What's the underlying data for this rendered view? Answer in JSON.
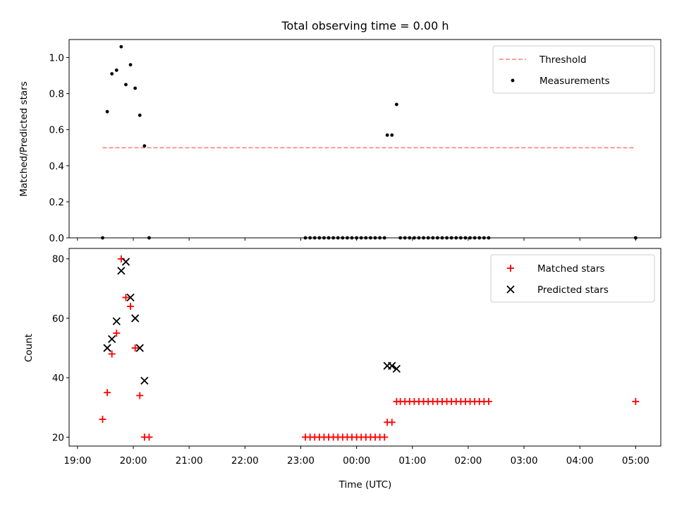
{
  "title": "Total observing time = 0.00 h",
  "chart_data": [
    {
      "type": "scatter",
      "id": "ratio",
      "ylabel": "Matched/Predicted stars",
      "xlabel": "",
      "ylim": [
        0,
        1.1
      ],
      "yticks": [
        0.0,
        0.2,
        0.4,
        0.6,
        0.8,
        1.0
      ],
      "ytick_labels": [
        "0.0",
        "0.2",
        "0.4",
        "0.6",
        "0.8",
        "1.0"
      ],
      "xlim_hours": [
        18.85,
        29.45
      ],
      "xticks_hours": [
        19,
        20,
        21,
        22,
        23,
        24,
        25,
        26,
        27,
        28,
        29
      ],
      "show_xtick_labels": false,
      "legend": {
        "placement": "top-right",
        "entries": [
          {
            "label": "Threshold",
            "marker": "dashed-line",
            "color": "#ff7f7f"
          },
          {
            "label": "Measurements",
            "marker": "dot",
            "color": "#000000"
          }
        ]
      },
      "threshold": {
        "name": "Threshold",
        "value": 0.5,
        "x": [
          "19:27",
          "04:58"
        ],
        "color": "#ff7f7f",
        "style": "dashed"
      },
      "series": [
        {
          "name": "Measurements",
          "color": "#000000",
          "marker": "dot",
          "points": [
            [
              "19:27",
              0.0
            ],
            [
              "19:32",
              0.7
            ],
            [
              "19:37",
              0.91
            ],
            [
              "19:42",
              0.93
            ],
            [
              "19:47",
              1.06
            ],
            [
              "19:52",
              0.85
            ],
            [
              "19:57",
              0.96
            ],
            [
              "20:02",
              0.83
            ],
            [
              "20:07",
              0.68
            ],
            [
              "20:12",
              0.51
            ],
            [
              "20:17",
              0.0
            ],
            [
              "23:05",
              0.0
            ],
            [
              "23:10",
              0.0
            ],
            [
              "23:15",
              0.0
            ],
            [
              "23:20",
              0.0
            ],
            [
              "23:25",
              0.0
            ],
            [
              "23:30",
              0.0
            ],
            [
              "23:35",
              0.0
            ],
            [
              "23:40",
              0.0
            ],
            [
              "23:45",
              0.0
            ],
            [
              "23:50",
              0.0
            ],
            [
              "23:55",
              0.0
            ],
            [
              "00:00",
              0.0
            ],
            [
              "00:05",
              0.0
            ],
            [
              "00:10",
              0.0
            ],
            [
              "00:15",
              0.0
            ],
            [
              "00:20",
              0.0
            ],
            [
              "00:25",
              0.0
            ],
            [
              "00:30",
              0.0
            ],
            [
              "00:33",
              0.57
            ],
            [
              "00:38",
              0.57
            ],
            [
              "00:43",
              0.74
            ],
            [
              "00:47",
              0.0
            ],
            [
              "00:52",
              0.0
            ],
            [
              "00:57",
              0.0
            ],
            [
              "01:02",
              0.0
            ],
            [
              "01:07",
              0.0
            ],
            [
              "01:12",
              0.0
            ],
            [
              "01:17",
              0.0
            ],
            [
              "01:22",
              0.0
            ],
            [
              "01:27",
              0.0
            ],
            [
              "01:32",
              0.0
            ],
            [
              "01:37",
              0.0
            ],
            [
              "01:42",
              0.0
            ],
            [
              "01:47",
              0.0
            ],
            [
              "01:52",
              0.0
            ],
            [
              "01:57",
              0.0
            ],
            [
              "02:02",
              0.0
            ],
            [
              "02:07",
              0.0
            ],
            [
              "02:12",
              0.0
            ],
            [
              "02:17",
              0.0
            ],
            [
              "02:22",
              0.0
            ],
            [
              "05:00",
              0.0
            ]
          ]
        }
      ]
    },
    {
      "type": "scatter",
      "id": "counts",
      "ylabel": "Count",
      "xlabel": "Time (UTC)",
      "ylim": [
        17,
        83.5
      ],
      "yticks": [
        20,
        40,
        60,
        80
      ],
      "ytick_labels": [
        "20",
        "40",
        "60",
        "80"
      ],
      "xlim_hours": [
        18.85,
        29.45
      ],
      "xticks_hours": [
        19,
        20,
        21,
        22,
        23,
        24,
        25,
        26,
        27,
        28,
        29
      ],
      "xtick_labels": [
        "19:00",
        "20:00",
        "21:00",
        "22:00",
        "23:00",
        "00:00",
        "01:00",
        "02:00",
        "03:00",
        "04:00",
        "05:00"
      ],
      "show_xtick_labels": true,
      "legend": {
        "placement": "top-right",
        "entries": [
          {
            "label": "Matched stars",
            "marker": "plus",
            "color": "#ff0000"
          },
          {
            "label": "Predicted stars",
            "marker": "x",
            "color": "#000000"
          }
        ]
      },
      "series": [
        {
          "name": "Matched stars",
          "color": "#ff0000",
          "marker": "plus",
          "points": [
            [
              "19:27",
              26
            ],
            [
              "19:32",
              35
            ],
            [
              "19:37",
              48
            ],
            [
              "19:42",
              55
            ],
            [
              "19:47",
              80
            ],
            [
              "19:52",
              67
            ],
            [
              "19:57",
              64
            ],
            [
              "20:02",
              50
            ],
            [
              "20:07",
              34
            ],
            [
              "20:12",
              20
            ],
            [
              "20:17",
              20
            ],
            [
              "23:05",
              20
            ],
            [
              "23:10",
              20
            ],
            [
              "23:15",
              20
            ],
            [
              "23:20",
              20
            ],
            [
              "23:25",
              20
            ],
            [
              "23:30",
              20
            ],
            [
              "23:35",
              20
            ],
            [
              "23:40",
              20
            ],
            [
              "23:45",
              20
            ],
            [
              "23:50",
              20
            ],
            [
              "23:55",
              20
            ],
            [
              "00:00",
              20
            ],
            [
              "00:05",
              20
            ],
            [
              "00:10",
              20
            ],
            [
              "00:15",
              20
            ],
            [
              "00:20",
              20
            ],
            [
              "00:25",
              20
            ],
            [
              "00:30",
              20
            ],
            [
              "00:33",
              25
            ],
            [
              "00:38",
              25
            ],
            [
              "00:43",
              32
            ],
            [
              "00:47",
              32
            ],
            [
              "00:52",
              32
            ],
            [
              "00:57",
              32
            ],
            [
              "01:02",
              32
            ],
            [
              "01:07",
              32
            ],
            [
              "01:12",
              32
            ],
            [
              "01:17",
              32
            ],
            [
              "01:22",
              32
            ],
            [
              "01:27",
              32
            ],
            [
              "01:32",
              32
            ],
            [
              "01:37",
              32
            ],
            [
              "01:42",
              32
            ],
            [
              "01:47",
              32
            ],
            [
              "01:52",
              32
            ],
            [
              "01:57",
              32
            ],
            [
              "02:02",
              32
            ],
            [
              "02:07",
              32
            ],
            [
              "02:12",
              32
            ],
            [
              "02:17",
              32
            ],
            [
              "02:22",
              32
            ],
            [
              "05:00",
              32
            ]
          ]
        },
        {
          "name": "Predicted stars",
          "color": "#000000",
          "marker": "x",
          "points": [
            [
              "19:32",
              50
            ],
            [
              "19:37",
              53
            ],
            [
              "19:42",
              59
            ],
            [
              "19:47",
              76
            ],
            [
              "19:52",
              79
            ],
            [
              "19:57",
              67
            ],
            [
              "20:02",
              60
            ],
            [
              "20:07",
              50
            ],
            [
              "20:12",
              39
            ],
            [
              "00:33",
              44
            ],
            [
              "00:38",
              44
            ],
            [
              "00:43",
              43
            ]
          ]
        }
      ]
    }
  ]
}
